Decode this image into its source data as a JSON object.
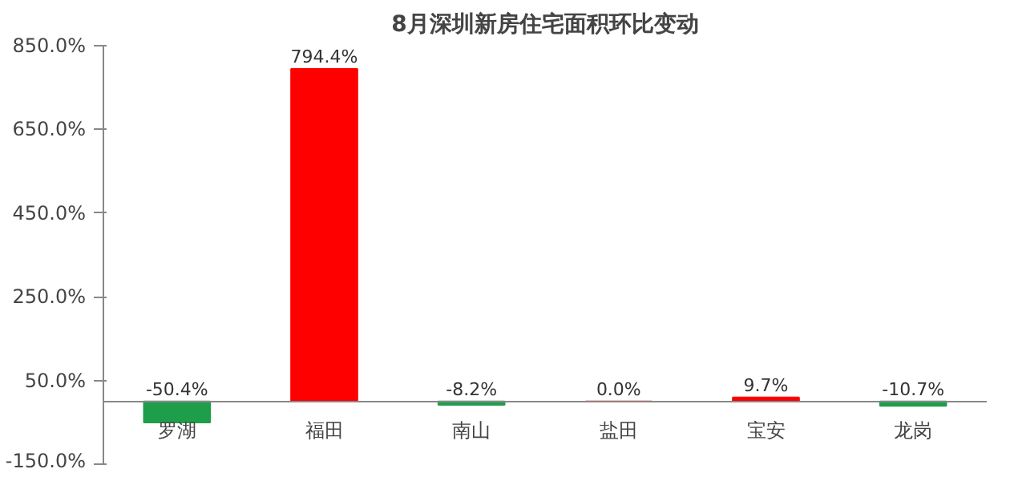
{
  "chart_data": {
    "type": "bar",
    "title": "8月深圳新房住宅面积环比变动",
    "categories": [
      "罗湖",
      "福田",
      "南山",
      "盐田",
      "宝安",
      "龙岗"
    ],
    "values": [
      -50.4,
      794.4,
      -8.2,
      0.0,
      9.7,
      -10.7
    ],
    "colors": [
      "#1e9e4a",
      "#ff0000",
      "#1e9e4a",
      "#ff0000",
      "#ff0000",
      "#1e9e4a"
    ],
    "value_labels": [
      "-50.4%",
      "794.4%",
      "-8.2%",
      "0.0%",
      "9.7%",
      "-10.7%"
    ],
    "ylim": [
      -150,
      850
    ],
    "yticks": [
      {
        "value": -150,
        "label": "-150.0%"
      },
      {
        "value": 50,
        "label": "50.0%"
      },
      {
        "value": 250,
        "label": "250.0%"
      },
      {
        "value": 450,
        "label": "450.0%"
      },
      {
        "value": 650,
        "label": "650.0%"
      },
      {
        "value": 850,
        "label": "850.0%"
      }
    ],
    "grid": false
  }
}
